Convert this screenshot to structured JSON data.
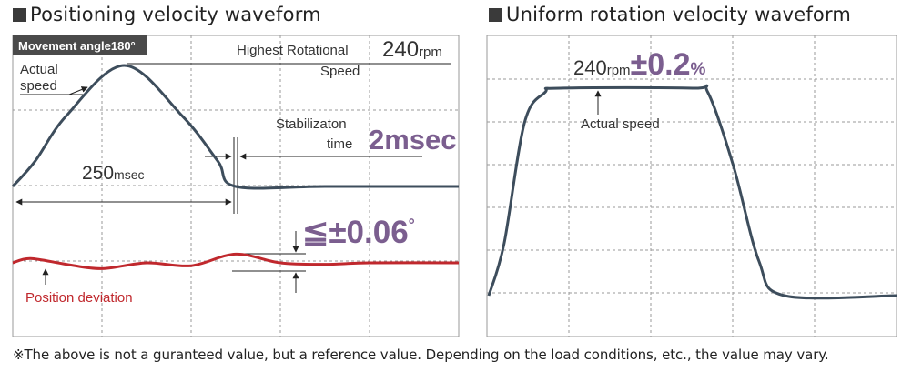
{
  "panel_left": {
    "title": "Positioning velocity waveform",
    "badge": "Movement angle180°",
    "actual_speed_line1": "Actual",
    "actual_speed_line2": "speed",
    "highest_label_line1": "Highest Rotational",
    "highest_label_line2": "Speed",
    "highest_value": "240",
    "highest_unit": "rpm",
    "stabilization_line1": "Stabilizaton",
    "stabilization_line2": "time",
    "stabilization_value": "2msec",
    "duration_value": "250",
    "duration_unit": "msec",
    "deviation_value": "≦±0.06",
    "deviation_unit": "°",
    "position_deviation_label": "Position deviation"
  },
  "panel_right": {
    "title": "Uniform rotation velocity waveform",
    "speed_value": "240",
    "speed_unit": "rpm",
    "tolerance_value": "±0.2",
    "tolerance_unit": "%",
    "actual_speed_label": "Actual speed"
  },
  "footnote": "※The above is not a guranteed value, but a reference value. Depending on the load conditions, etc., the value may vary.",
  "colors": {
    "velocity_line": "#3d4d5c",
    "deviation_line": "#c0282d",
    "accent_purple": "#7b5e8f",
    "grid": "#9a9a9a",
    "badge_bg": "#4a4a4a",
    "red_label": "#c0282d"
  },
  "chart_data": [
    {
      "type": "line",
      "title": "Positioning velocity waveform",
      "series": [
        {
          "name": "Actual speed",
          "x": [
            0,
            25,
            60,
            125,
            190,
            230,
            250,
            350,
            500
          ],
          "values": [
            0,
            50,
            140,
            240,
            140,
            50,
            0,
            0,
            0
          ]
        },
        {
          "name": "Position deviation",
          "x": [
            0,
            20,
            60,
            100,
            150,
            200,
            250,
            300,
            350,
            400,
            500
          ],
          "values": [
            0,
            0.03,
            -0.01,
            -0.04,
            0,
            -0.02,
            0.06,
            0,
            -0.01,
            0,
            0
          ]
        }
      ],
      "annotations": [
        "Highest Rotational Speed 240rpm",
        "Stabilizaton time 2msec",
        "250msec",
        "≦±0.06°"
      ]
    },
    {
      "type": "line",
      "title": "Uniform rotation velocity waveform",
      "series": [
        {
          "name": "Actual speed",
          "x": [
            0,
            15,
            35,
            55,
            70,
            200,
            215,
            240,
            265,
            290,
            400
          ],
          "values": [
            0,
            60,
            200,
            235,
            240,
            240,
            235,
            150,
            40,
            0,
            0
          ]
        }
      ],
      "annotations": [
        "240rpm±0.2%"
      ]
    }
  ]
}
